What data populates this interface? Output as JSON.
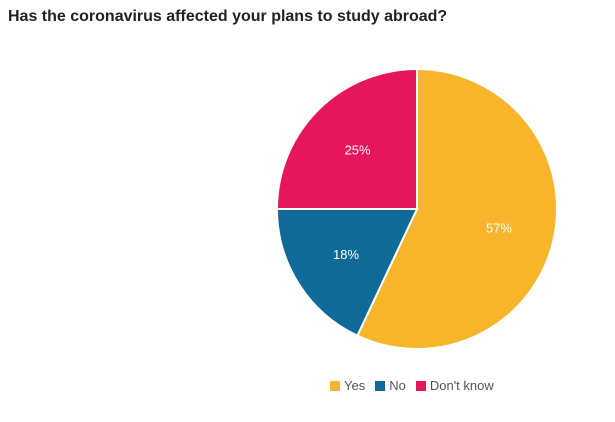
{
  "chart_data": {
    "type": "pie",
    "title": "Has the coronavirus affected your plans to study abroad?",
    "slices": [
      {
        "label": "Yes",
        "value": 57,
        "display": "57%",
        "color": "#f7b52b"
      },
      {
        "label": "No",
        "value": 18,
        "display": "18%",
        "color": "#0f6a99"
      },
      {
        "label": "Don't know",
        "value": 25,
        "display": "25%",
        "color": "#e5155e"
      }
    ],
    "legend_position": "bottom",
    "start_angle": "12 o'clock",
    "direction": "clockwise"
  }
}
